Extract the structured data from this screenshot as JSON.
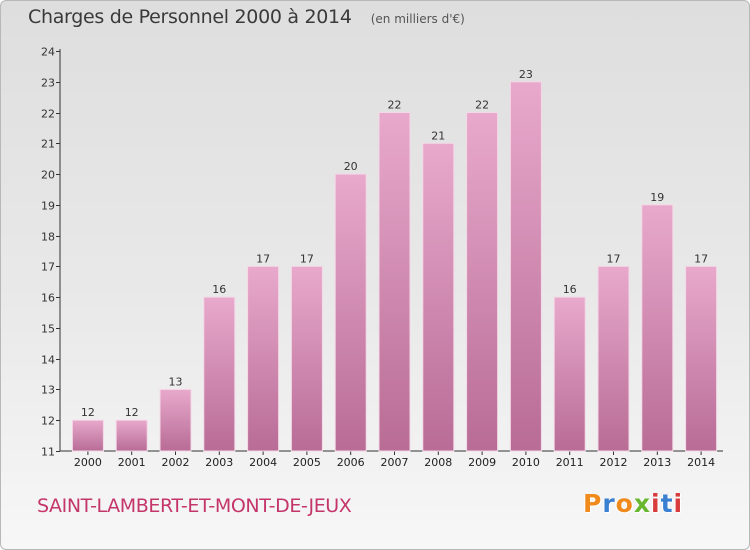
{
  "header": {
    "title": "Charges de Personnel 2000 à 2014",
    "unit": "(en milliers d'€)"
  },
  "footer": {
    "commune": "SAINT-LAMBERT-ET-MONT-DE-JEUX",
    "logo": "Proxiti"
  },
  "colors": {
    "bar_top": "#e8a9cc",
    "bar_bottom": "#b86c96",
    "commune_text": "#c4356a",
    "logo_letters": [
      "#f08a1c",
      "#3a7fd0",
      "#f08a1c",
      "#67b82e",
      "#d83c3c",
      "#3a7fd0",
      "#d83c3c"
    ]
  },
  "chart_data": {
    "type": "bar",
    "title": "Charges de Personnel 2000 à 2014",
    "subtitle": "(en milliers d'€)",
    "categories": [
      "2000",
      "2001",
      "2002",
      "2003",
      "2004",
      "2005",
      "2006",
      "2007",
      "2008",
      "2009",
      "2010",
      "2011",
      "2012",
      "2013",
      "2014"
    ],
    "values": [
      12,
      12,
      13,
      16,
      17,
      17,
      20,
      22,
      21,
      22,
      23,
      16,
      17,
      19,
      17
    ],
    "ylim": [
      11,
      24
    ],
    "yticks": [
      11,
      12,
      13,
      14,
      15,
      16,
      17,
      18,
      19,
      20,
      21,
      22,
      23,
      24
    ],
    "grid": false,
    "data_labels": true
  }
}
